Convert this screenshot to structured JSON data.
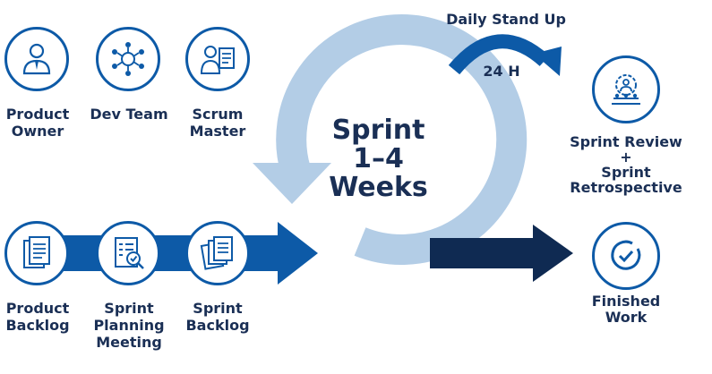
{
  "roles": [
    {
      "label_lines": [
        "Product",
        "Owner"
      ],
      "icon": "person-icon"
    },
    {
      "label_lines": [
        "Dev Team"
      ],
      "icon": "team-network-icon"
    },
    {
      "label_lines": [
        "Scrum",
        "Master"
      ],
      "icon": "presenter-board-icon"
    }
  ],
  "artifacts": [
    {
      "label_lines": [
        "Product",
        "Backlog"
      ],
      "icon": "documents-icon"
    },
    {
      "label_lines": [
        "Sprint",
        "Planning",
        "Meeting"
      ],
      "icon": "checklist-search-icon"
    },
    {
      "label_lines": [
        "Sprint",
        "Backlog"
      ],
      "icon": "stacked-pages-icon"
    }
  ],
  "sprint": {
    "line1": "Sprint",
    "line2": "1–4",
    "line3": "Weeks"
  },
  "standup": {
    "title": "Daily Stand Up",
    "duration": "24 H"
  },
  "review": {
    "line1": "Sprint Review",
    "line2": "+",
    "line3": "Sprint",
    "line4": "Retrospective",
    "icon": "gear-team-icon"
  },
  "finished": {
    "line1": "Finished",
    "line2": "Work",
    "icon": "check-circle-icon"
  },
  "colors": {
    "dark_navy": "#0f2a52",
    "blue": "#0d5aa7",
    "light_blue": "#b3cde6",
    "text": "#1a2f55"
  }
}
